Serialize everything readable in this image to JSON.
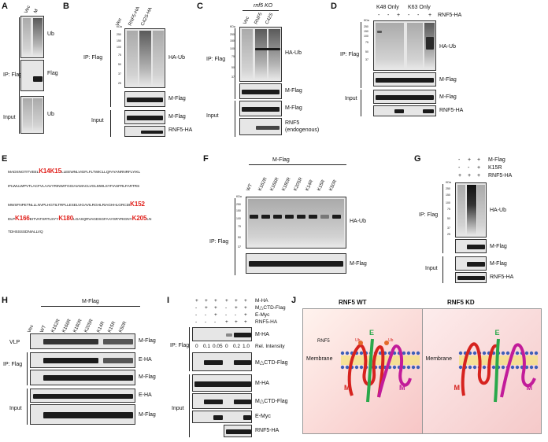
{
  "panels": {
    "A": {
      "label": "A",
      "lanes": [
        "Vec",
        "M"
      ],
      "ip": "IP: Flag",
      "input": "Input",
      "blots": [
        "Ub",
        "Flag",
        "Ub"
      ]
    },
    "B": {
      "label": "B",
      "lanes": [
        "Vec",
        "RNF5-HA",
        "C42S-HA"
      ],
      "ip": "IP: Flag",
      "input": "Input",
      "blots": [
        "HA-Ub",
        "M-Flag",
        "M-Flag",
        "RNF5-HA"
      ],
      "kda": "KDa",
      "mw": [
        "250",
        "150",
        "100",
        "75",
        "50",
        "37",
        "25"
      ]
    },
    "C": {
      "label": "C",
      "ko": "rnf5 KO",
      "lanes": [
        "Vec",
        "RNF5",
        "C42S"
      ],
      "ip": "IP: Flag",
      "input": "Input",
      "blots": [
        "HA-Ub",
        "M-Flag",
        "M-Flag",
        "RNF5",
        "(endogenous)"
      ],
      "kda": "KDa",
      "mw": [
        "250",
        "150",
        "100",
        "75",
        "50",
        "37"
      ]
    },
    "D": {
      "label": "D",
      "groups": [
        "K48 Only",
        "K63 Only"
      ],
      "signs": [
        "-",
        "-",
        "+",
        "-",
        "-",
        "+"
      ],
      "rnf5": "RNF5-HA",
      "ip": "IP: Flag",
      "input": "Input",
      "blots": [
        "HA-Ub",
        "M-Flag",
        "M-Flag",
        "RNF5-HA"
      ],
      "kda": "KDa",
      "mw": [
        "250",
        "150",
        "100",
        "75",
        "50",
        "37"
      ]
    },
    "E": {
      "label": "E",
      "seq": [
        {
          "pre": "MADSNGTITVEEL",
          "k1": "K14",
          "mid": "",
          "k2": "K15",
          "post": "LLEEWNLVIGFLFLTWICLLQFAYANRNRFLYIKL"
        },
        {
          "pre": "IFLWLLWPVTLACFVLAAVYRINWITGGIAIAMACLVGLMWLSYFIASFRLFARTRS"
        },
        {
          "pre": "MWSFNPETNLLLNVPLHGTILTRPLLESELVIGAVILRGHLRIAGHHLGRCDI",
          "k1": "K152"
        },
        {
          "pre": "DLP",
          "k1": "K166",
          "mid": "EITVATSRTLSYY",
          "k2": "K180",
          "post": "LGASQRVAGDSGFAAYSRYRIGNY",
          "k3": "K205",
          "post2": "LN"
        },
        {
          "pre": "TDHSSSSDNIALLVQ"
        }
      ]
    },
    "F": {
      "label": "F",
      "header": "M-Flag",
      "lanes": [
        "WT",
        "K162R",
        "K166R",
        "K180R",
        "K205R",
        "K14R",
        "K15R",
        "K50R"
      ],
      "ip": "IP: Flag",
      "blots": [
        "HA-Ub",
        "M-Flag"
      ],
      "kda": "KDa",
      "mw": [
        "250",
        "150",
        "100",
        "75",
        "50",
        "37"
      ]
    },
    "G": {
      "label": "G",
      "rows": [
        {
          "name": "M-Flag",
          "signs": [
            "-",
            "+",
            "+"
          ]
        },
        {
          "name": "K15R",
          "signs": [
            "-",
            "-",
            "+"
          ]
        },
        {
          "name": "RNF5-HA",
          "signs": [
            "+",
            "+",
            "+"
          ]
        }
      ],
      "ip": "IP: Flag",
      "input": "Input",
      "blots": [
        "HA-Ub",
        "M-Flag",
        "M-Flag",
        "RNF5-HA"
      ],
      "kda": "KDa",
      "mw": [
        "250",
        "150",
        "100",
        "75",
        "50",
        "37",
        "25"
      ]
    },
    "H": {
      "label": "H",
      "header": "M-Flag",
      "lanes": [
        "Vec",
        "WT",
        "K162R",
        "K166R",
        "K180R",
        "K205R",
        "K14R",
        "K15R",
        "K50R"
      ],
      "vlp": "VLP",
      "ip": "IP: Flag",
      "input": "Input",
      "blots": [
        "M-Flag",
        "E-HA",
        "M-Flag",
        "E-HA",
        "M-Flag"
      ]
    },
    "I": {
      "label": "I",
      "rows": [
        {
          "name": "M-HA",
          "signs": [
            "+",
            "+",
            "+",
            "+",
            "+",
            "+"
          ]
        },
        {
          "name": "M△CTD-Flag",
          "signs": [
            "-",
            "+",
            "+",
            "-",
            "+",
            "+"
          ]
        },
        {
          "name": "E-Myc",
          "signs": [
            "-",
            "-",
            "+",
            "-",
            "-",
            "+"
          ]
        },
        {
          "name": "RNF5-HA",
          "signs": [
            "-",
            "-",
            "-",
            "+",
            "+",
            "+"
          ]
        }
      ],
      "ip": "IP: Flag",
      "input": "Input",
      "intensity": [
        "0",
        "0.1",
        "0.05",
        "0",
        "0.2",
        "1.0"
      ],
      "intensity_label": "Rel. Intensity",
      "blots": [
        "M-HA",
        "M△CTD-Flag",
        "M-HA",
        "M△CTD-Flag",
        "E-Myc",
        "RNF5-HA"
      ]
    },
    "J": {
      "label": "J",
      "wt": "RNF5 WT",
      "kd": "RNF5 KD",
      "membrane": "Membrane",
      "rnf5": "RNF5",
      "ub": "Ub",
      "m": "M",
      "e": "E"
    }
  }
}
